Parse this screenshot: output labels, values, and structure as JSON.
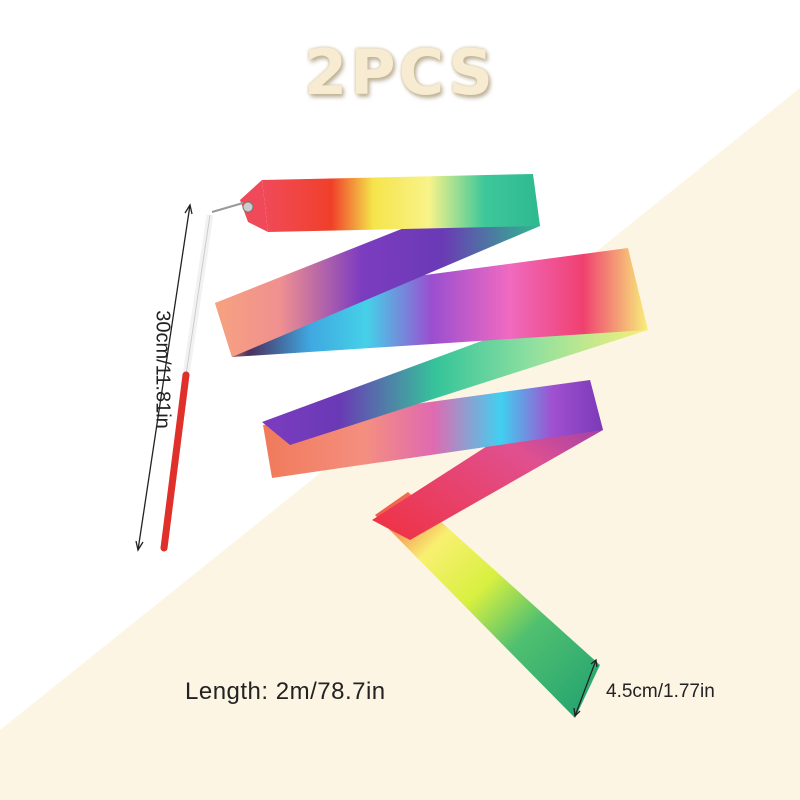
{
  "title": "2PCS",
  "product": {
    "stick_length_label": "30cm/11.81in",
    "ribbon_length_label": "Length: 2m/78.7in",
    "ribbon_width_label": "4.5cm/1.77in"
  },
  "colors": {
    "background": "#ffffff",
    "cream_panel": "#fdf5e4",
    "title": "#f7ecd2",
    "stick_red": "#e0302a"
  },
  "icons": [
    "gymnastics-ribbon-image",
    "dimension-arrow-icon"
  ]
}
